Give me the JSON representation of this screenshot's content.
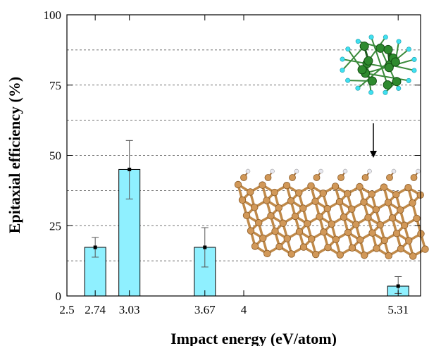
{
  "chart_data": {
    "type": "bar",
    "title": "",
    "xlabel": "Impact energy (eV/atom)",
    "ylabel": "Epitaxial efficiency (%)",
    "xlim": [
      2.5,
      5.5
    ],
    "ylim": [
      0,
      100
    ],
    "x_ticks": [
      "2.5",
      "2.74",
      "3.03",
      "3.67",
      "4",
      "5.31"
    ],
    "y_ticks": [
      "0",
      "25",
      "50",
      "75",
      "100"
    ],
    "grid": "dashed horizontal lines every 12.5",
    "bars": [
      {
        "x": 2.74,
        "value": 17.3,
        "err_low": 13.8,
        "err_high": 20.8
      },
      {
        "x": 3.03,
        "value": 45.0,
        "err_low": 34.5,
        "err_high": 55.3
      },
      {
        "x": 3.67,
        "value": 17.3,
        "err_low": 10.3,
        "err_high": 24.3
      },
      {
        "x": 5.31,
        "value": 3.5,
        "err_low": 0.9,
        "err_high": 6.9
      }
    ],
    "bar_color": "#8ff0ff",
    "inset": "molecule (green with cyan atoms) above a crystal slab (tan atoms), connected by a downward arrow"
  }
}
